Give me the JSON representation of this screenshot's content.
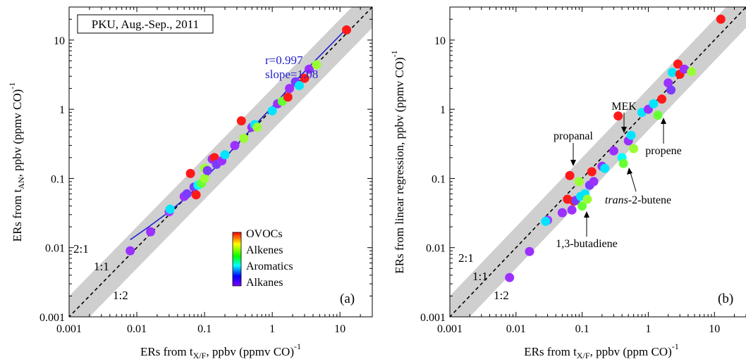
{
  "figure": {
    "colorbar": {
      "labels": [
        "OVOCs",
        "Alkenes",
        "Aromatics",
        "Alkanes"
      ],
      "gradient": [
        "#ff0000",
        "#ffff00",
        "#00ff00",
        "#00ffff",
        "#0000ff",
        "#8000ff"
      ]
    },
    "ratio_labels": [
      "2:1",
      "1:1",
      "1:2"
    ]
  },
  "chart_data": [
    {
      "type": "scatter",
      "panel_label": "(a)",
      "box_text": "PKU, Aug.-Sep., 2011",
      "stats": [
        "r=0.997",
        "slope=1.08"
      ],
      "xlabel": "ERs from tX/F, ppbv (ppmv CO)-1",
      "ylabel": "ERs from tAN, ppbv (ppmv CO)-1",
      "xlabel_parts": {
        "pre": "ERs from t",
        "sub": "X/F",
        "mid": ", ppbv (ppmv CO)",
        "sup": "-1"
      },
      "ylabel_parts": {
        "pre": "ERs from t",
        "sub": "AN",
        "mid": ", ppbv (ppmv CO)",
        "sup": "-1"
      },
      "xscale": "log",
      "yscale": "log",
      "xlim": [
        0.001,
        30
      ],
      "ylim": [
        0.001,
        30
      ],
      "xticks": [
        0.001,
        0.01,
        0.1,
        1,
        10
      ],
      "yticks": [
        0.001,
        0.01,
        0.1,
        1,
        10
      ],
      "tick_labels": [
        "0.001",
        "0.01",
        "0.1",
        "1",
        "10"
      ],
      "band": "1:2 to 2:1 (grey)",
      "line_1to1": "dashed",
      "fit_line_color": "#1f1fd0",
      "fit_line": [
        [
          0.008,
          0.013
        ],
        [
          0.015,
          0.02
        ],
        [
          0.03,
          0.033
        ],
        [
          0.06,
          0.058
        ],
        [
          0.1,
          0.1
        ],
        [
          0.2,
          0.2
        ],
        [
          0.5,
          0.53
        ],
        [
          1,
          1.08
        ],
        [
          2,
          2.3
        ],
        [
          4,
          4.7
        ],
        [
          12,
          14
        ]
      ],
      "points": [
        {
          "x": 0.008,
          "y": 0.009,
          "color": "#9b30ff"
        },
        {
          "x": 0.016,
          "y": 0.017,
          "color": "#9b30ff"
        },
        {
          "x": 0.03,
          "y": 0.033,
          "color": "#a040ff"
        },
        {
          "x": 0.031,
          "y": 0.036,
          "color": "#00e5ff"
        },
        {
          "x": 0.05,
          "y": 0.055,
          "color": "#9b30ff"
        },
        {
          "x": 0.055,
          "y": 0.06,
          "color": "#7a3cff"
        },
        {
          "x": 0.062,
          "y": 0.118,
          "color": "#ff1a1a"
        },
        {
          "x": 0.07,
          "y": 0.075,
          "color": "#7a3cff"
        },
        {
          "x": 0.075,
          "y": 0.058,
          "color": "#ff1a1a"
        },
        {
          "x": 0.08,
          "y": 0.08,
          "color": "#00ffff"
        },
        {
          "x": 0.09,
          "y": 0.085,
          "color": "#66ff33"
        },
        {
          "x": 0.1,
          "y": 0.1,
          "color": "#99ff33"
        },
        {
          "x": 0.1,
          "y": 0.14,
          "color": "#99ff33"
        },
        {
          "x": 0.11,
          "y": 0.13,
          "color": "#7a3cff"
        },
        {
          "x": 0.13,
          "y": 0.19,
          "color": "#9b30ff"
        },
        {
          "x": 0.14,
          "y": 0.2,
          "color": "#ff1a1a"
        },
        {
          "x": 0.15,
          "y": 0.16,
          "color": "#7a3cff"
        },
        {
          "x": 0.18,
          "y": 0.18,
          "color": "#9b30ff"
        },
        {
          "x": 0.2,
          "y": 0.22,
          "color": "#00e5ff"
        },
        {
          "x": 0.28,
          "y": 0.3,
          "color": "#9b30ff"
        },
        {
          "x": 0.35,
          "y": 0.68,
          "color": "#ff1a1a"
        },
        {
          "x": 0.38,
          "y": 0.38,
          "color": "#99ff33"
        },
        {
          "x": 0.5,
          "y": 0.55,
          "color": "#9b30ff"
        },
        {
          "x": 0.55,
          "y": 0.6,
          "color": "#00e5ff"
        },
        {
          "x": 0.6,
          "y": 0.55,
          "color": "#99ff33"
        },
        {
          "x": 1.0,
          "y": 0.95,
          "color": "#00e5ff"
        },
        {
          "x": 1.2,
          "y": 1.2,
          "color": "#9b30ff"
        },
        {
          "x": 1.4,
          "y": 1.3,
          "color": "#66ff33"
        },
        {
          "x": 1.7,
          "y": 1.5,
          "color": "#ff1a1a"
        },
        {
          "x": 1.8,
          "y": 2.0,
          "color": "#9b30ff"
        },
        {
          "x": 2.2,
          "y": 2.5,
          "color": "#7a3cff"
        },
        {
          "x": 2.5,
          "y": 2.2,
          "color": "#00e5ff"
        },
        {
          "x": 3.0,
          "y": 2.8,
          "color": "#ff1a1a"
        },
        {
          "x": 3.5,
          "y": 3.8,
          "color": "#9b30ff"
        },
        {
          "x": 4.5,
          "y": 4.4,
          "color": "#99ff33"
        },
        {
          "x": 12.5,
          "y": 14,
          "color": "#ff1a1a"
        }
      ]
    },
    {
      "type": "scatter",
      "panel_label": "(b)",
      "xlabel": "ERs from tX/F, ppbv (ppm CO)-1",
      "ylabel": "ERs from linear regression, ppbv (ppmv CO)-1",
      "xlabel_parts": {
        "pre": "ERs from t",
        "sub": "X/F",
        "mid": ", ppbv (ppm CO)",
        "sup": "-1"
      },
      "ylabel_parts": {
        "pre": "ERs from linear regression, ppbv (ppmv CO)",
        "sub": "",
        "mid": "",
        "sup": "-1"
      },
      "xscale": "log",
      "yscale": "log",
      "xlim": [
        0.001,
        30
      ],
      "ylim": [
        0.001,
        30
      ],
      "xticks": [
        0.001,
        0.01,
        0.1,
        1,
        10
      ],
      "yticks": [
        0.001,
        0.01,
        0.1,
        1,
        10
      ],
      "tick_labels": [
        "0.001",
        "0.01",
        "0.1",
        "1",
        "10"
      ],
      "band": "1:2 to 2:1 (grey)",
      "line_1to1": "dashed",
      "annotations": [
        {
          "text": "MEK",
          "x": 0.35,
          "y": 0.8
        },
        {
          "text": "propanal",
          "x": 0.068,
          "y": 0.11
        },
        {
          "text": "propene",
          "x": 1.6,
          "y": 0.85
        },
        {
          "text": "trans-2-butene",
          "x": 0.42,
          "y": 0.17
        },
        {
          "text": "1,3-butadiene",
          "x": 0.11,
          "y": 0.04
        }
      ],
      "points": [
        {
          "x": 0.008,
          "y": 0.0037,
          "color": "#9b30ff"
        },
        {
          "x": 0.016,
          "y": 0.0088,
          "color": "#9b30ff"
        },
        {
          "x": 0.03,
          "y": 0.025,
          "color": "#a040ff"
        },
        {
          "x": 0.028,
          "y": 0.024,
          "color": "#00e5ff"
        },
        {
          "x": 0.05,
          "y": 0.032,
          "color": "#9b30ff"
        },
        {
          "x": 0.06,
          "y": 0.05,
          "color": "#ff1a1a"
        },
        {
          "x": 0.065,
          "y": 0.11,
          "color": "#ff1a1a"
        },
        {
          "x": 0.07,
          "y": 0.035,
          "color": "#9b30ff"
        },
        {
          "x": 0.075,
          "y": 0.047,
          "color": "#ff1a1a"
        },
        {
          "x": 0.08,
          "y": 0.048,
          "color": "#7a3cff"
        },
        {
          "x": 0.09,
          "y": 0.09,
          "color": "#99ff33"
        },
        {
          "x": 0.095,
          "y": 0.055,
          "color": "#00e5ff"
        },
        {
          "x": 0.1,
          "y": 0.04,
          "color": "#66ff33"
        },
        {
          "x": 0.11,
          "y": 0.06,
          "color": "#00e5ff"
        },
        {
          "x": 0.12,
          "y": 0.05,
          "color": "#99ff33"
        },
        {
          "x": 0.13,
          "y": 0.08,
          "color": "#7a3cff"
        },
        {
          "x": 0.14,
          "y": 0.125,
          "color": "#ff1a1a"
        },
        {
          "x": 0.15,
          "y": 0.09,
          "color": "#9b30ff"
        },
        {
          "x": 0.2,
          "y": 0.15,
          "color": "#9b30ff"
        },
        {
          "x": 0.22,
          "y": 0.14,
          "color": "#00e5ff"
        },
        {
          "x": 0.3,
          "y": 0.25,
          "color": "#9b30ff"
        },
        {
          "x": 0.35,
          "y": 0.8,
          "color": "#ff1a1a"
        },
        {
          "x": 0.4,
          "y": 0.2,
          "color": "#00ffff"
        },
        {
          "x": 0.42,
          "y": 0.165,
          "color": "#66ff33"
        },
        {
          "x": 0.5,
          "y": 0.35,
          "color": "#9b30ff"
        },
        {
          "x": 0.55,
          "y": 0.42,
          "color": "#00e5ff"
        },
        {
          "x": 0.6,
          "y": 0.27,
          "color": "#99ff33"
        },
        {
          "x": 0.8,
          "y": 0.9,
          "color": "#00e5ff"
        },
        {
          "x": 1.0,
          "y": 1.0,
          "color": "#9b30ff"
        },
        {
          "x": 1.2,
          "y": 1.2,
          "color": "#00e5ff"
        },
        {
          "x": 1.4,
          "y": 0.82,
          "color": "#66ff33"
        },
        {
          "x": 1.6,
          "y": 1.4,
          "color": "#ff1a1a"
        },
        {
          "x": 2.0,
          "y": 2.4,
          "color": "#9b30ff"
        },
        {
          "x": 2.2,
          "y": 1.9,
          "color": "#7a3cff"
        },
        {
          "x": 2.3,
          "y": 3.4,
          "color": "#00e5ff"
        },
        {
          "x": 2.8,
          "y": 4.5,
          "color": "#ff1a1a"
        },
        {
          "x": 3.0,
          "y": 3.2,
          "color": "#ff1a1a"
        },
        {
          "x": 3.5,
          "y": 3.8,
          "color": "#9b30ff"
        },
        {
          "x": 4.5,
          "y": 3.5,
          "color": "#99ff33"
        },
        {
          "x": 12.5,
          "y": 20,
          "color": "#ff1a1a"
        }
      ]
    }
  ]
}
